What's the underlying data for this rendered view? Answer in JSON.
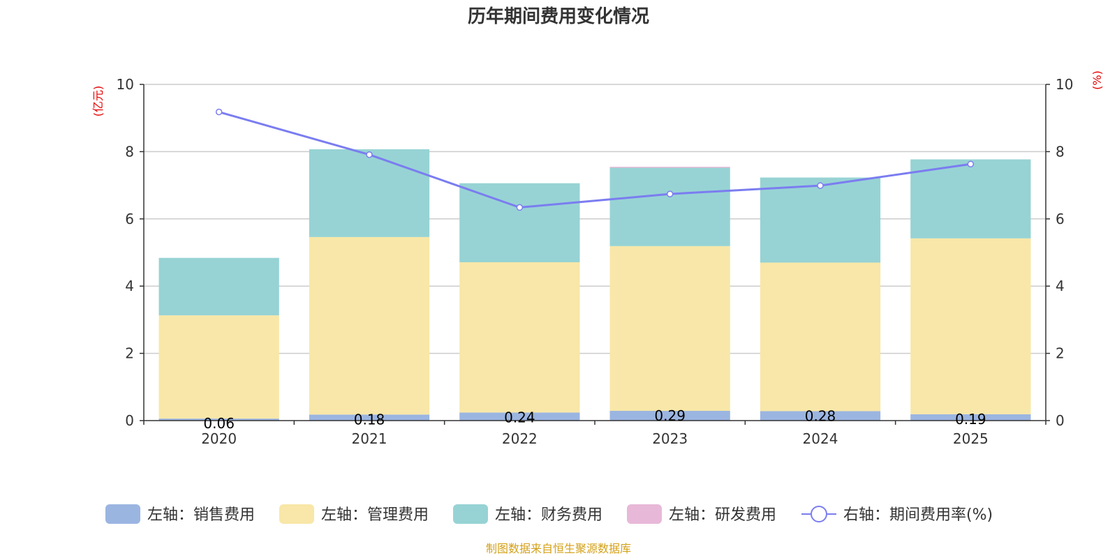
{
  "chart_data": {
    "type": "bar",
    "stacked": true,
    "title": "历年期间费用变化情况",
    "categories": [
      "2020",
      "2021",
      "2022",
      "2023",
      "2024",
      "2025"
    ],
    "left_axis": {
      "unit_label": "(亿元)",
      "ylim": [
        0,
        10
      ],
      "ticks": [
        "0",
        "2",
        "4",
        "6",
        "8",
        "10"
      ]
    },
    "right_axis": {
      "unit_label": "(%)",
      "ylim": [
        0,
        10
      ],
      "ticks": [
        "0",
        "2",
        "4",
        "6",
        "8",
        "10"
      ]
    },
    "series": [
      {
        "name": "左轴：销售费用",
        "color": "#9bb5e1",
        "axis": "left",
        "values": [
          0.06,
          0.18,
          0.24,
          0.29,
          0.28,
          0.19
        ],
        "labels": [
          "0.06",
          "0.18",
          "0.24",
          "0.29",
          "0.28",
          "0.19"
        ]
      },
      {
        "name": "左轴：管理费用",
        "color": "#f8e7a8",
        "axis": "left",
        "values": [
          3.07,
          5.28,
          4.47,
          4.9,
          4.42,
          5.23
        ]
      },
      {
        "name": "左轴：财务费用",
        "color": "#97d3d4",
        "axis": "left",
        "values": [
          1.71,
          2.61,
          2.35,
          2.33,
          2.53,
          2.35
        ]
      },
      {
        "name": "左轴：研发费用",
        "color": "#e8b8d8",
        "axis": "left",
        "values": [
          0.0,
          0.0,
          0.0,
          0.03,
          0.0,
          0.0
        ]
      }
    ],
    "line_series": {
      "name": "右轴：期间费用率(%)",
      "color": "#7b7df0",
      "axis": "right",
      "values": [
        9.18,
        7.91,
        6.34,
        6.74,
        6.99,
        7.63
      ]
    },
    "grid": true,
    "legend_position": "bottom"
  },
  "source_text": "制图数据来自恒生聚源数据库"
}
